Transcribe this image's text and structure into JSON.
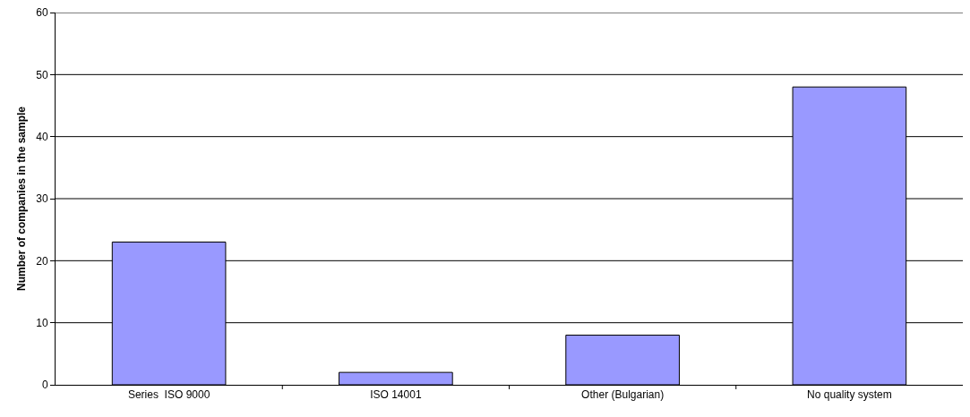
{
  "chart_data": {
    "type": "bar",
    "ylabel": "Number of companies in the sample",
    "categories": [
      "Series  ISO 9000",
      "ISO 14001",
      "Other (Bulgarian)",
      "No quality system"
    ],
    "values": [
      23,
      2,
      8,
      48
    ],
    "color": "#9999ff",
    "ylim": [
      0,
      60
    ],
    "yticks": [
      0,
      10,
      20,
      30,
      40,
      50,
      60
    ],
    "grid": "y"
  }
}
